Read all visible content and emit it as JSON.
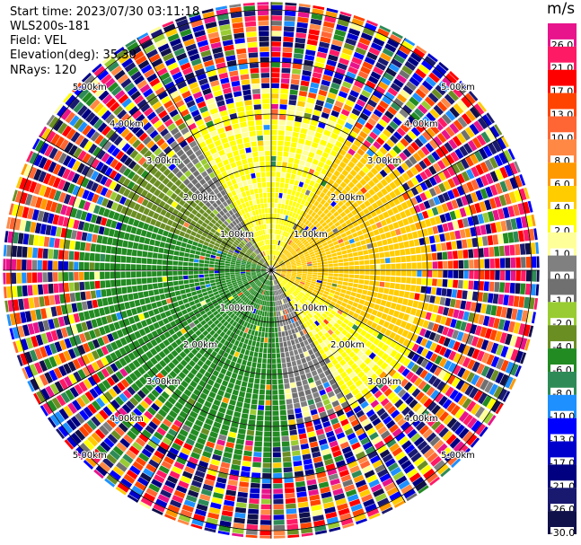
{
  "header": {
    "start_time": "Start time: 2023/07/30 03:11:18",
    "instrument": "WLS200s-181",
    "field": "Field: VEL",
    "elevation": "Elevation(deg): 35.30",
    "nrays": "NRays: 120"
  },
  "colorbar": {
    "unit": "m/s",
    "levels": [
      {
        "label": "26.0",
        "color": "#e8148c"
      },
      {
        "label": "21.0",
        "color": "#ff1a66"
      },
      {
        "label": "17.0",
        "color": "#ff0000"
      },
      {
        "label": "13.0",
        "color": "#ff4400"
      },
      {
        "label": "10.0",
        "color": "#ff6633"
      },
      {
        "label": "8.0",
        "color": "#ff8844"
      },
      {
        "label": "6.0",
        "color": "#ff9900"
      },
      {
        "label": "4.0",
        "color": "#ffcc00"
      },
      {
        "label": "2.0",
        "color": "#ffff00"
      },
      {
        "label": "1.0",
        "color": "#ffff99"
      },
      {
        "label": "0.0",
        "color": "#808080"
      },
      {
        "label": "-1.0",
        "color": "#707070"
      },
      {
        "label": "-2.0",
        "color": "#99cc33"
      },
      {
        "label": "-4.0",
        "color": "#6b8e23"
      },
      {
        "label": "-6.0",
        "color": "#228b22"
      },
      {
        "label": "-8.0",
        "color": "#2e8b57"
      },
      {
        "label": "-10.0",
        "color": "#1e90ff"
      },
      {
        "label": "-13.0",
        "color": "#0000ff"
      },
      {
        "label": "-17.0",
        "color": "#0000cd"
      },
      {
        "label": "-21.0",
        "color": "#000080"
      },
      {
        "label": "-26.0",
        "color": "#191970"
      },
      {
        "label": "-30.0",
        "color": "#10104a"
      }
    ]
  },
  "chart_data": {
    "type": "heatmap",
    "projection": "polar-ppi",
    "field": "VEL",
    "nrays": 120,
    "range_rings_km": [
      1,
      2,
      3,
      4,
      5
    ],
    "ring_labels": [
      "1.00km",
      "2.00km",
      "3.00km",
      "4.00km",
      "5.00km"
    ],
    "max_range_km": 5.15,
    "azimuth_lines_deg": [
      0,
      30,
      60,
      90,
      120,
      150,
      180,
      210,
      240,
      270,
      300,
      330
    ],
    "sectors": [
      {
        "azimuth_from": 330,
        "azimuth_to": 360,
        "velocity": 2.5,
        "max_range_km": 3.0
      },
      {
        "azimuth_from": 0,
        "azimuth_to": 30,
        "velocity": 2.5,
        "max_range_km": 3.0
      },
      {
        "azimuth_from": 30,
        "azimuth_to": 120,
        "velocity": 5.0,
        "max_range_km": 2.9
      },
      {
        "azimuth_from": 120,
        "azimuth_to": 150,
        "velocity": 2.5,
        "max_range_km": 2.9
      },
      {
        "azimuth_from": 150,
        "azimuth_to": 175,
        "velocity": 0.3,
        "max_range_km": 2.6
      },
      {
        "azimuth_from": 175,
        "azimuth_to": 290,
        "velocity": -5.0,
        "max_range_km": 3.4
      },
      {
        "azimuth_from": 290,
        "azimuth_to": 315,
        "velocity": -3.0,
        "max_range_km": 3.2
      },
      {
        "azimuth_from": 315,
        "azimuth_to": 330,
        "velocity": -0.5,
        "max_range_km": 2.8
      }
    ],
    "outer_region": "noise"
  }
}
